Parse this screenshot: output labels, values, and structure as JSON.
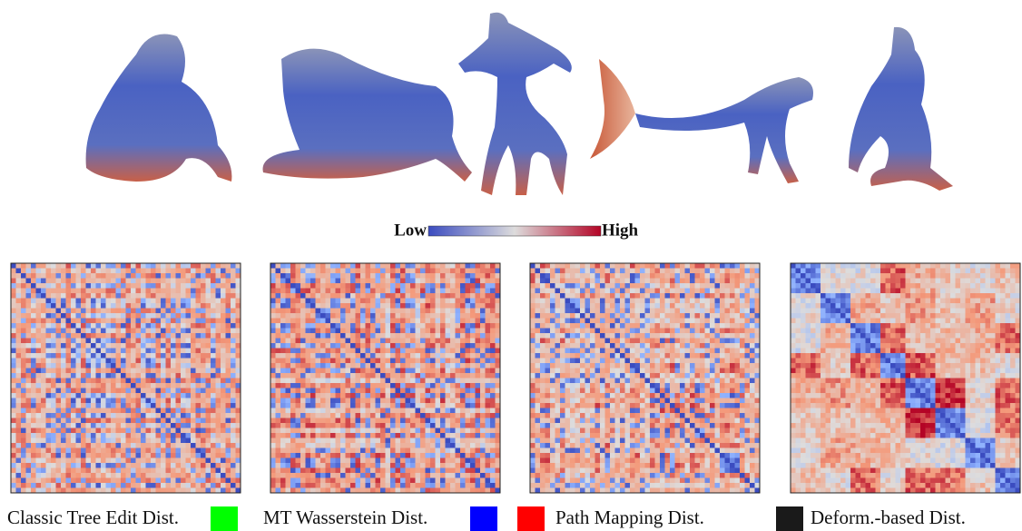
{
  "colorbar": {
    "low": "Low",
    "high": "High"
  },
  "panels": [
    {
      "label": "Classic Tree Edit Dist.",
      "color": "#00ff00"
    },
    {
      "label": "MT Wasserstein Dist.",
      "color": "#0000ff"
    },
    {
      "label": "Path Mapping Dist.",
      "color": "#ff0000"
    },
    {
      "label": "Deform.-based Dist.",
      "color": "#1a1a1a"
    }
  ]
}
